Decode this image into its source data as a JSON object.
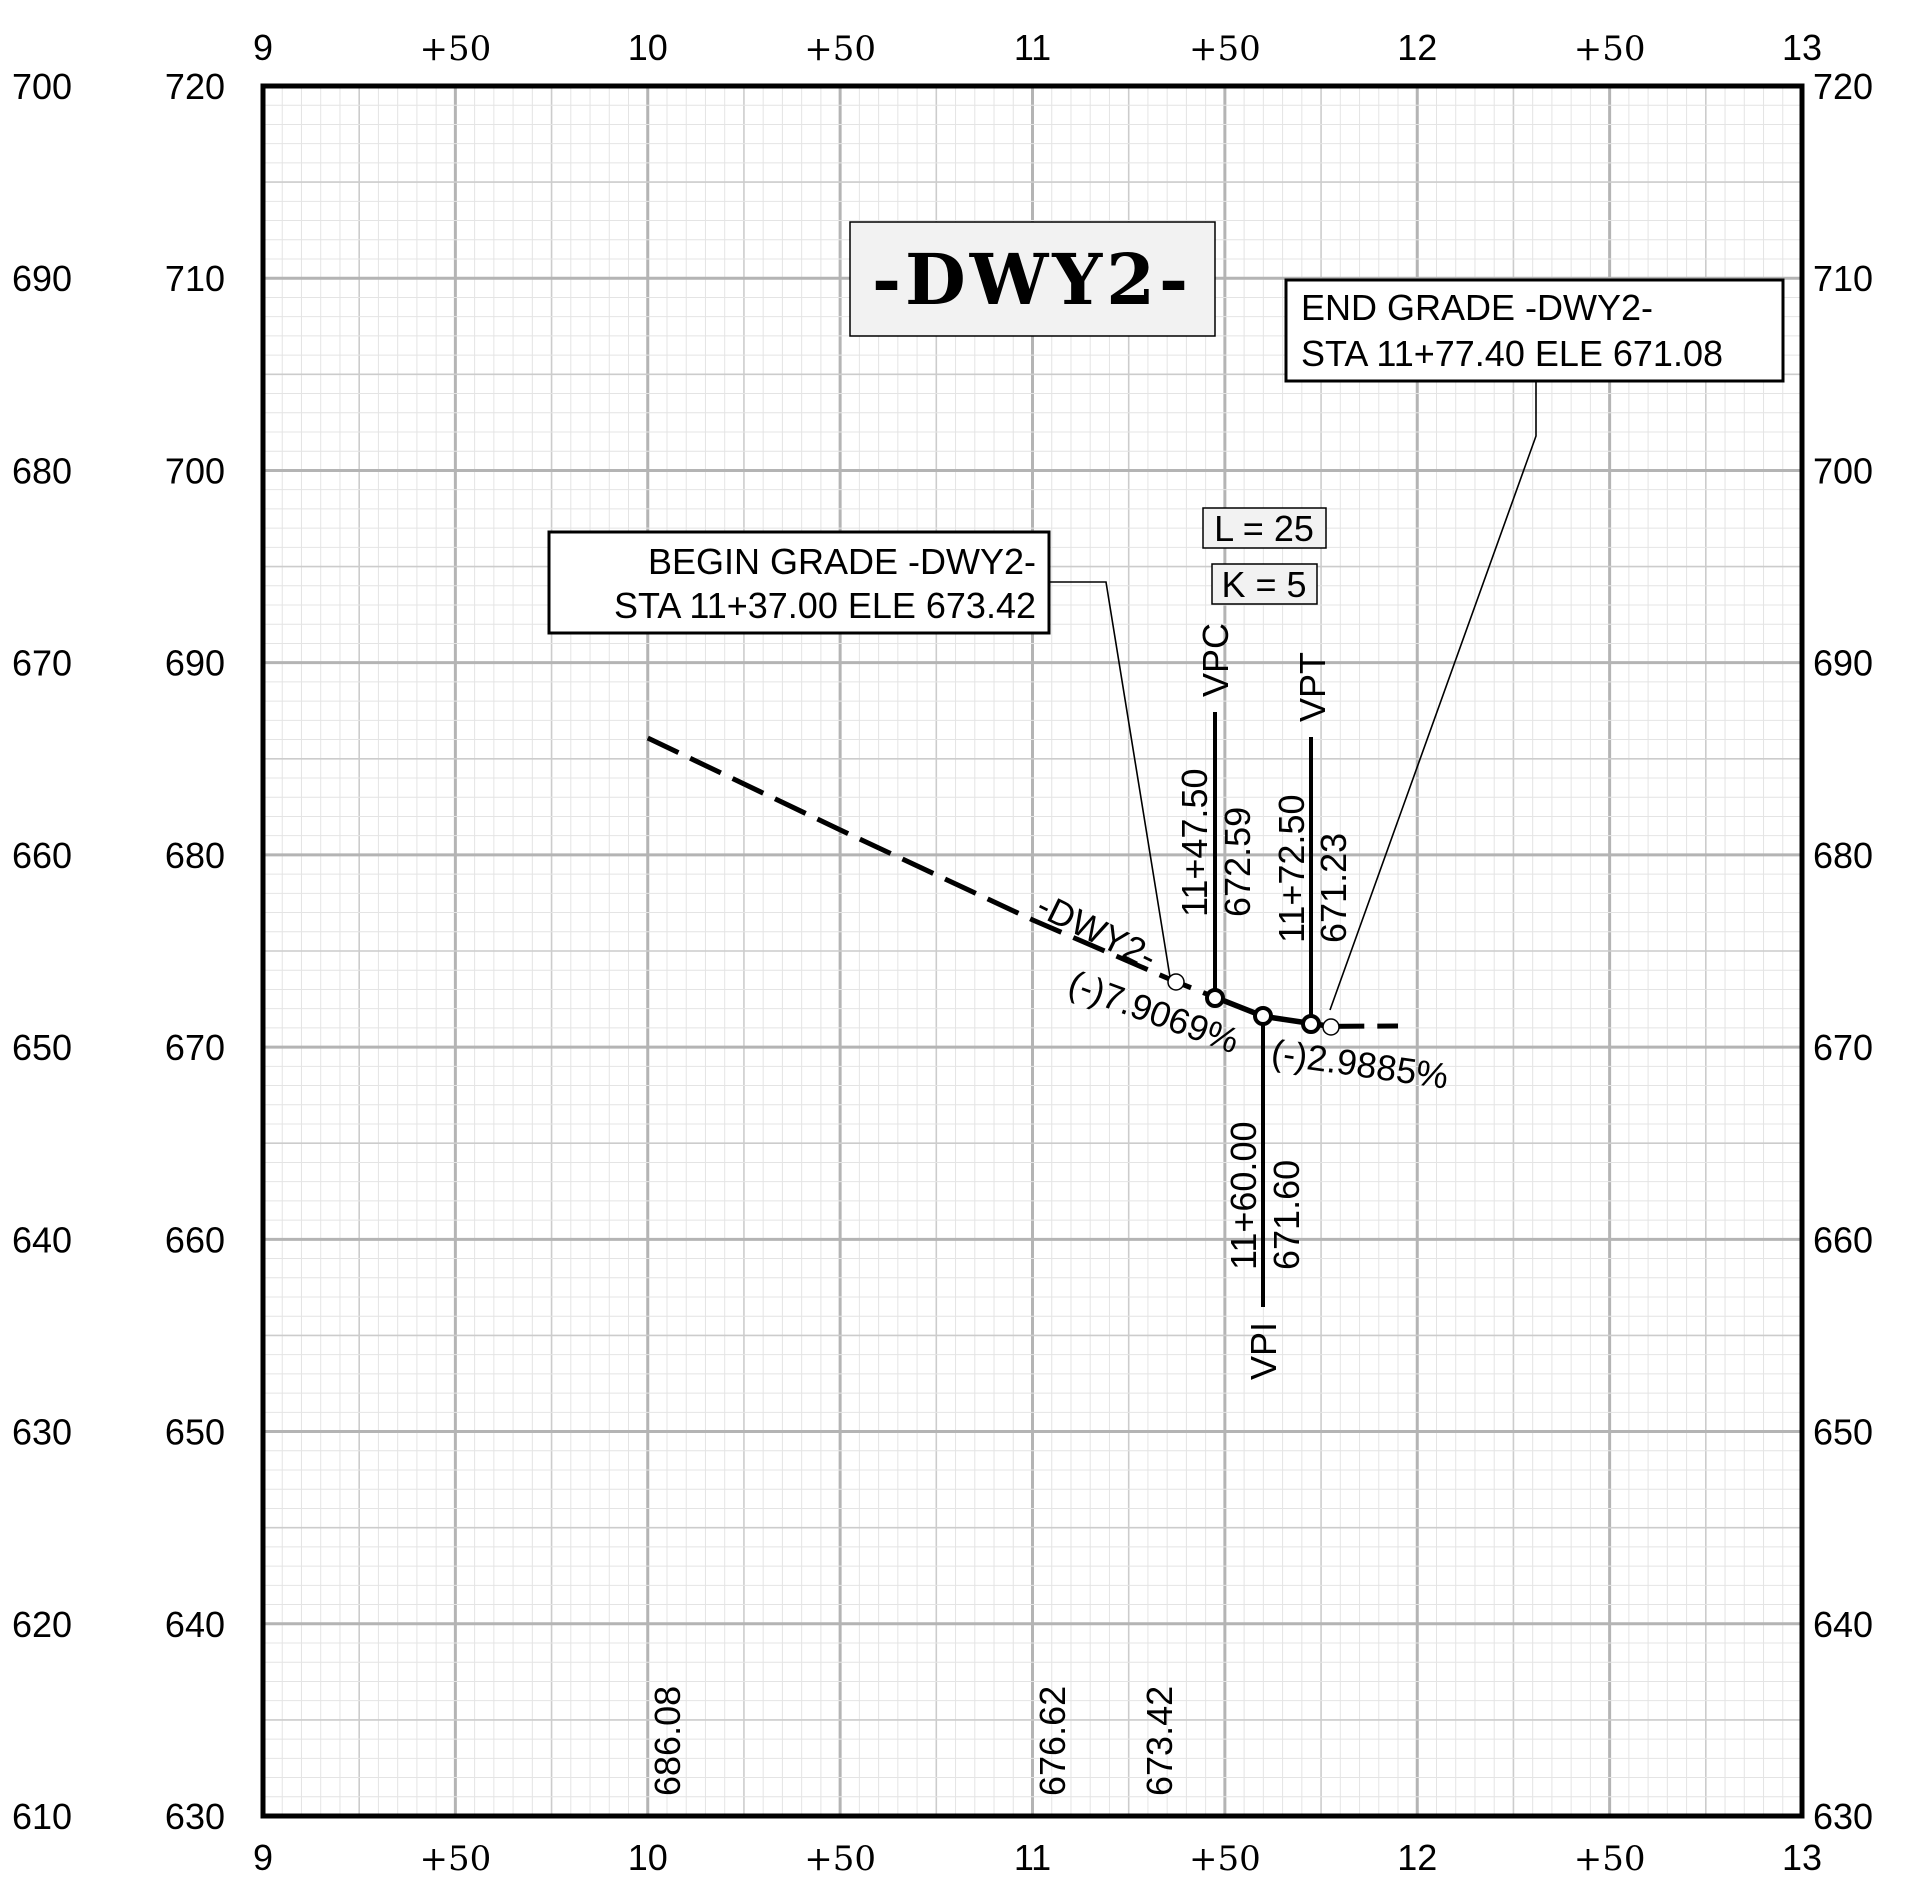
{
  "title": "-DWY2-",
  "top_station_labels": [
    "9",
    "+50",
    "10",
    "+50",
    "11",
    "+50",
    "12",
    "+50",
    "13"
  ],
  "bottom_station_labels": [
    "9",
    "+50",
    "10",
    "+50",
    "11",
    "+50",
    "12",
    "+50",
    "13"
  ],
  "left_outer_elevations": [
    "700",
    "690",
    "680",
    "670",
    "660",
    "650",
    "640",
    "630",
    "620",
    "610"
  ],
  "left_inner_elevations": [
    "720",
    "710",
    "700",
    "690",
    "680",
    "670",
    "660",
    "650",
    "640",
    "630"
  ],
  "right_elevations": [
    "720",
    "710",
    "700",
    "690",
    "680",
    "670",
    "660",
    "650",
    "640",
    "630"
  ],
  "begin_grade": {
    "line1": "BEGIN GRADE -DWY2-",
    "line2": "STA 11+37.00 ELE 673.42"
  },
  "end_grade": {
    "line1": "END GRADE -DWY2-",
    "line2": "STA 11+77.40 ELE 671.08"
  },
  "curve": {
    "length_label": "L = 25",
    "k_label": "K = 5"
  },
  "vpc": {
    "name": "VPC",
    "station": "11+47.50",
    "elevation": "672.59"
  },
  "vpi": {
    "name": "VPI",
    "station": "11+60.00",
    "elevation": "671.60"
  },
  "vpt": {
    "name": "VPT",
    "station": "11+72.50",
    "elevation": "671.23"
  },
  "alignment_label": "-DWY2-",
  "grade_in": "(-)7.9069%",
  "grade_out": "(-)2.9885%",
  "existing_ground_elevations": [
    "686.08",
    "676.62",
    "673.42"
  ],
  "colors": {
    "grid_major": "#b4b4b4",
    "grid_minor": "#e4e4e4",
    "frame": "#000000",
    "box_fill": "#f2f2f2"
  },
  "chart_data": {
    "type": "line",
    "x_axis": {
      "unit": "station",
      "range": [
        900,
        1300
      ],
      "tick_labels": [
        "9",
        "+50",
        "10",
        "+50",
        "11",
        "+50",
        "12",
        "+50",
        "13"
      ]
    },
    "y_axis": {
      "unit": "elevation",
      "range": [
        630,
        720
      ]
    },
    "grid": true,
    "series": [
      {
        "style": "dashed",
        "points": [
          [
            1000,
            686.08
          ],
          [
            1050,
            681.3
          ],
          [
            1100,
            676.62
          ],
          [
            1137,
            673.42
          ],
          [
            1147.5,
            672.59
          ]
        ]
      },
      {
        "style": "solid",
        "points": [
          [
            1147.5,
            672.59
          ],
          [
            1160,
            671.6
          ],
          [
            1172.5,
            671.23
          ],
          [
            1177.4,
            671.08
          ]
        ]
      },
      {
        "style": "dashed",
        "points": [
          [
            1177.4,
            671.08
          ],
          [
            1195,
            671.1
          ]
        ]
      }
    ],
    "points": [
      {
        "label": "VPC",
        "station": "11+47.50",
        "elevation": 672.59
      },
      {
        "label": "VPI",
        "station": "11+60.00",
        "elevation": 671.6
      },
      {
        "label": "VPT",
        "station": "11+72.50",
        "elevation": 671.23
      }
    ],
    "annotations": [
      "BEGIN GRADE -DWY2-",
      "STA 11+37.00 ELE 673.42",
      "END GRADE -DWY2-",
      "STA 11+77.40 ELE 671.08",
      "L = 25",
      "K = 5",
      "(-)7.9069%",
      "(-)2.9885%"
    ]
  }
}
